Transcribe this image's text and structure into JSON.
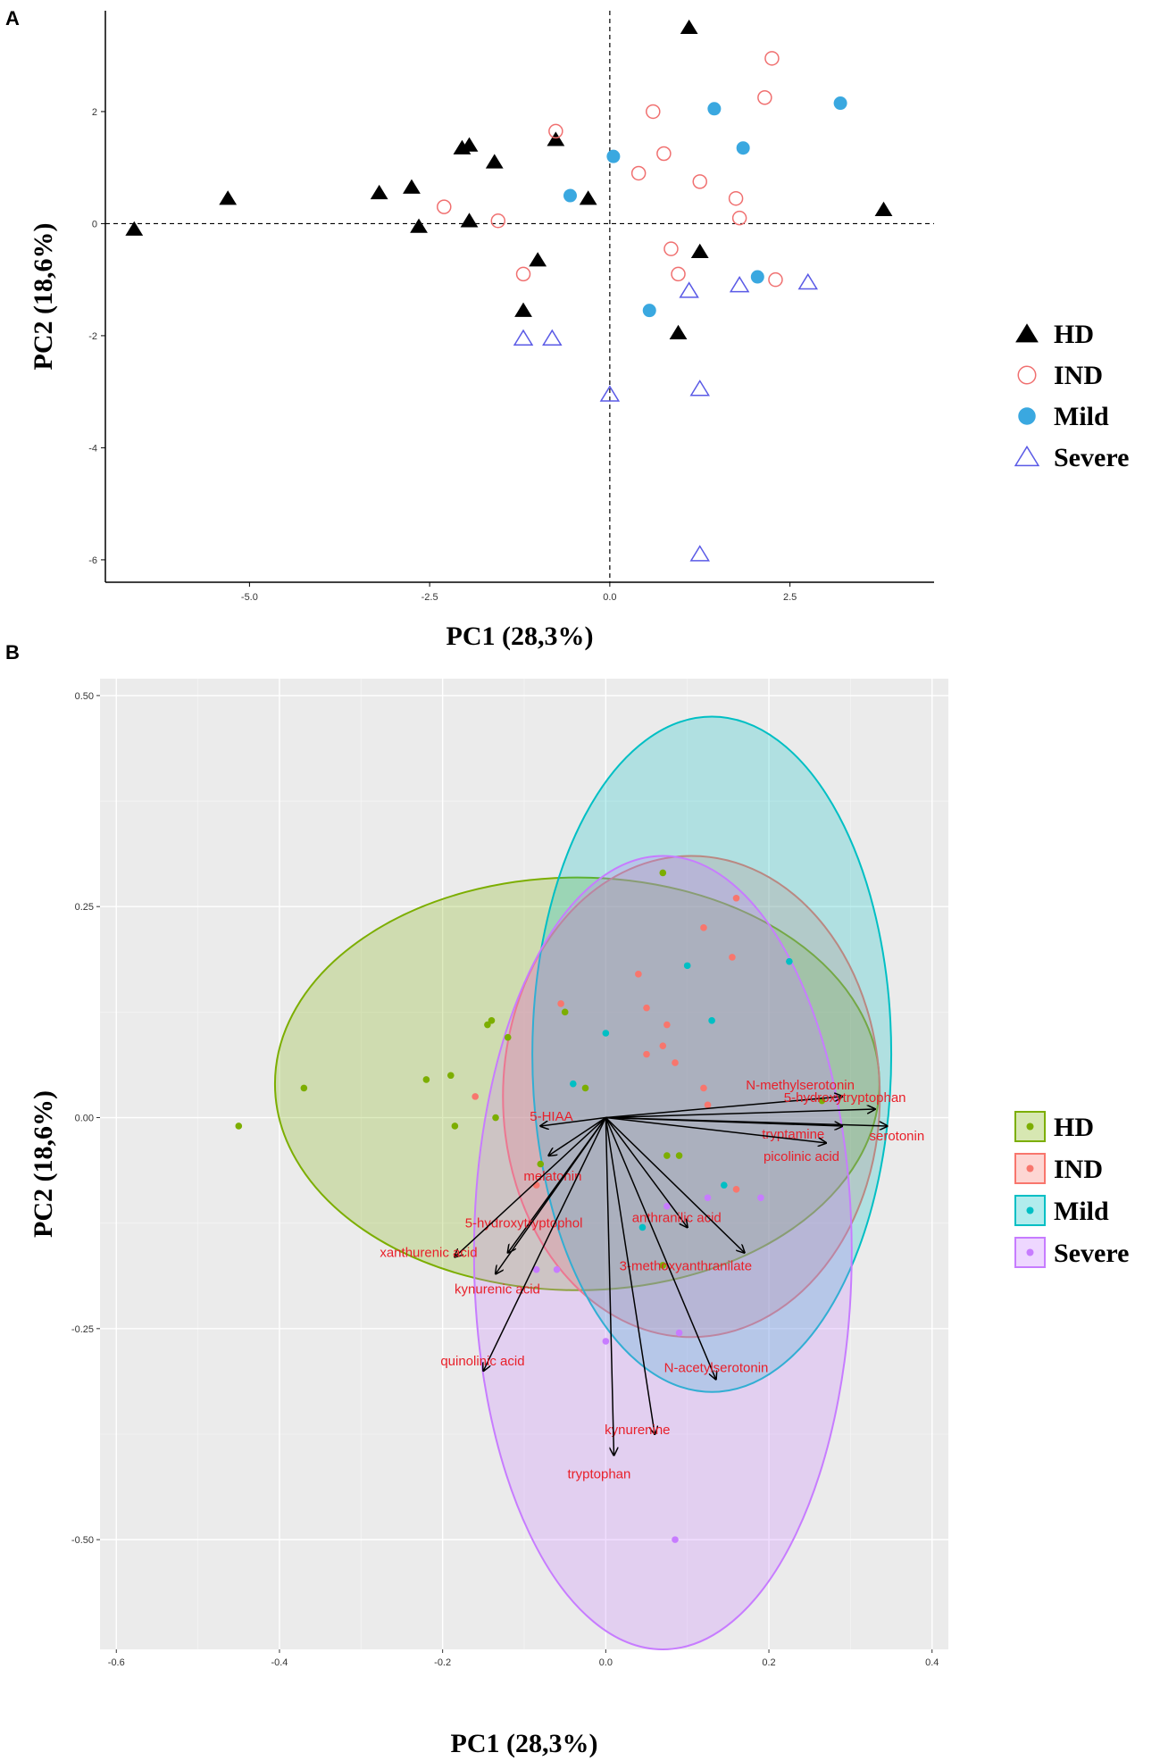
{
  "chart_data": [
    {
      "panel": "A",
      "type": "scatter",
      "xlabel": "PC1 (28,3%)",
      "ylabel": "PC2 (18,6%)",
      "xlim": [
        -7.0,
        4.5
      ],
      "ylim": [
        -6.4,
        3.8
      ],
      "xticks": [
        -5.0,
        -2.5,
        0.0,
        2.5
      ],
      "xtick_labels": [
        "-5.0",
        "-2.5",
        "0.0",
        "2.5"
      ],
      "yticks": [
        2,
        0,
        -2,
        -4,
        -6
      ],
      "ytick_labels": [
        "2",
        "0",
        "-2",
        "-4",
        "-6"
      ],
      "reference_lines": {
        "x": 0,
        "y": 0
      },
      "legend": [
        {
          "name": "HD",
          "marker": "filled-triangle",
          "color": "#000000"
        },
        {
          "name": "IND",
          "marker": "open-circle",
          "color": "#f07070"
        },
        {
          "name": "Mild",
          "marker": "filled-circle",
          "color": "#3aa8e0"
        },
        {
          "name": "Severe",
          "marker": "open-triangle",
          "color": "#5a5ae6"
        }
      ],
      "series": [
        {
          "name": "HD",
          "points": [
            [
              -6.6,
              -0.1
            ],
            [
              -5.3,
              0.45
            ],
            [
              -3.2,
              0.55
            ],
            [
              -2.75,
              0.65
            ],
            [
              -2.65,
              -0.05
            ],
            [
              -2.05,
              1.35
            ],
            [
              -1.95,
              1.4
            ],
            [
              -1.95,
              0.05
            ],
            [
              -1.6,
              1.1
            ],
            [
              -1.2,
              -1.55
            ],
            [
              -1.0,
              -0.65
            ],
            [
              -0.75,
              1.5
            ],
            [
              -0.3,
              0.45
            ],
            [
              0.95,
              -1.95
            ],
            [
              1.1,
              3.5
            ],
            [
              1.25,
              -0.5
            ],
            [
              3.8,
              0.25
            ]
          ]
        },
        {
          "name": "IND",
          "points": [
            [
              -2.3,
              0.3
            ],
            [
              -1.55,
              0.05
            ],
            [
              -1.2,
              -0.9
            ],
            [
              -0.75,
              1.65
            ],
            [
              0.4,
              0.9
            ],
            [
              0.6,
              2.0
            ],
            [
              0.75,
              1.25
            ],
            [
              0.85,
              -0.45
            ],
            [
              0.95,
              -0.9
            ],
            [
              1.25,
              0.75
            ],
            [
              1.75,
              0.45
            ],
            [
              1.8,
              0.1
            ],
            [
              2.15,
              2.25
            ],
            [
              2.25,
              2.95
            ],
            [
              2.3,
              -1.0
            ]
          ]
        },
        {
          "name": "Mild",
          "points": [
            [
              -0.55,
              0.5
            ],
            [
              0.05,
              1.2
            ],
            [
              0.55,
              -1.55
            ],
            [
              1.45,
              2.05
            ],
            [
              1.85,
              1.35
            ],
            [
              2.05,
              -0.95
            ],
            [
              3.2,
              2.15
            ]
          ]
        },
        {
          "name": "Severe",
          "points": [
            [
              -1.2,
              -2.05
            ],
            [
              -0.8,
              -2.05
            ],
            [
              0.0,
              -3.05
            ],
            [
              1.1,
              -1.2
            ],
            [
              1.25,
              -2.95
            ],
            [
              1.25,
              -5.9
            ],
            [
              1.8,
              -1.1
            ],
            [
              2.75,
              -1.05
            ]
          ]
        }
      ]
    },
    {
      "panel": "B",
      "type": "biplot",
      "xlabel": "PC1 (28,3%)",
      "ylabel": "PC2 (18,6%)",
      "xlim": [
        -0.62,
        0.42
      ],
      "ylim": [
        -0.63,
        0.52
      ],
      "xticks": [
        -0.6,
        -0.4,
        -0.2,
        0.0,
        0.2,
        0.4
      ],
      "xtick_labels": [
        "-0.6",
        "-0.4",
        "-0.2",
        "0.0",
        "0.2",
        "0.4"
      ],
      "yticks": [
        0.5,
        0.25,
        0.0,
        -0.25,
        -0.5
      ],
      "ytick_labels": [
        "0.50",
        "0.25",
        "0.00",
        "-0.25",
        "-0.50"
      ],
      "legend": [
        {
          "name": "HD",
          "color": "#7cae00"
        },
        {
          "name": "IND",
          "color": "#f8766d"
        },
        {
          "name": "Mild",
          "color": "#00bfc4"
        },
        {
          "name": "Severe",
          "color": "#c77cff"
        }
      ],
      "ellipses": [
        {
          "group": "HD",
          "cx": -0.035,
          "cy": 0.04,
          "rx": 0.3705,
          "ry": 0.2445,
          "color": "#7cae00"
        },
        {
          "group": "IND",
          "cx": 0.105,
          "cy": 0.025,
          "rx": 0.231,
          "ry": 0.285,
          "color": "#f8766d"
        },
        {
          "group": "Mild",
          "cx": 0.13,
          "cy": 0.075,
          "rx": 0.22,
          "ry": 0.4,
          "color": "#00bfc4"
        },
        {
          "group": "Severe",
          "cx": 0.07,
          "cy": -0.16,
          "rx": 0.2315,
          "ry": 0.47,
          "color": "#c77cff"
        }
      ],
      "series": [
        {
          "name": "HD",
          "points": [
            [
              -0.45,
              -0.01
            ],
            [
              -0.37,
              0.035
            ],
            [
              -0.22,
              0.045
            ],
            [
              -0.19,
              0.05
            ],
            [
              -0.185,
              -0.01
            ],
            [
              -0.145,
              0.11
            ],
            [
              -0.14,
              0.115
            ],
            [
              -0.135,
              0.0
            ],
            [
              -0.12,
              0.095
            ],
            [
              -0.08,
              -0.055
            ],
            [
              -0.05,
              0.125
            ],
            [
              -0.025,
              0.035
            ],
            [
              0.075,
              -0.045
            ],
            [
              0.07,
              0.29
            ],
            [
              0.09,
              -0.045
            ],
            [
              0.265,
              0.02
            ],
            [
              0.07,
              -0.175
            ]
          ]
        },
        {
          "name": "IND",
          "points": [
            [
              -0.16,
              0.025
            ],
            [
              -0.085,
              -0.08
            ],
            [
              -0.055,
              0.135
            ],
            [
              0.04,
              0.17
            ],
            [
              0.05,
              0.075
            ],
            [
              0.07,
              0.085
            ],
            [
              0.05,
              0.13
            ],
            [
              0.085,
              0.065
            ],
            [
              0.12,
              0.035
            ],
            [
              0.125,
              0.015
            ],
            [
              0.16,
              0.26
            ],
            [
              0.155,
              0.19
            ],
            [
              0.16,
              -0.085
            ],
            [
              0.075,
              0.11
            ],
            [
              0.12,
              0.225
            ]
          ]
        },
        {
          "name": "Mild",
          "points": [
            [
              -0.04,
              0.04
            ],
            [
              0.0,
              0.1
            ],
            [
              0.045,
              -0.13
            ],
            [
              0.1,
              0.18
            ],
            [
              0.13,
              0.115
            ],
            [
              0.145,
              -0.08
            ],
            [
              0.225,
              0.185
            ]
          ]
        },
        {
          "name": "Severe",
          "points": [
            [
              -0.085,
              -0.18
            ],
            [
              -0.06,
              -0.18
            ],
            [
              0.0,
              -0.265
            ],
            [
              0.075,
              -0.105
            ],
            [
              0.09,
              -0.255
            ],
            [
              0.085,
              -0.5
            ],
            [
              0.125,
              -0.095
            ],
            [
              0.19,
              -0.095
            ]
          ]
        }
      ],
      "loadings": [
        {
          "name": "N-methylserotonin",
          "x": 0.29,
          "y": 0.025
        },
        {
          "name": "5-hydroxytryptophan",
          "x": 0.33,
          "y": 0.01
        },
        {
          "name": "tryptamine",
          "x": 0.29,
          "y": -0.01
        },
        {
          "name": "serotonin",
          "x": 0.345,
          "y": -0.01
        },
        {
          "name": "picolinic acid",
          "x": 0.27,
          "y": -0.03
        },
        {
          "name": "5-HIAA",
          "x": -0.08,
          "y": -0.01
        },
        {
          "name": "melatonin",
          "x": -0.07,
          "y": -0.045
        },
        {
          "name": "anthranilic acid",
          "x": 0.1,
          "y": -0.13
        },
        {
          "name": "3-methoxyanthranilate",
          "x": 0.17,
          "y": -0.16
        },
        {
          "name": "5-hydroxytryptophol",
          "x": -0.12,
          "y": -0.16
        },
        {
          "name": "xanthurenic acid",
          "x": -0.185,
          "y": -0.165
        },
        {
          "name": "kynurenic acid",
          "x": -0.135,
          "y": -0.185
        },
        {
          "name": "quinolinic acid",
          "x": -0.15,
          "y": -0.3
        },
        {
          "name": "N-acetylserotonin",
          "x": 0.135,
          "y": -0.31
        },
        {
          "name": "kynurenine",
          "x": 0.06,
          "y": -0.375
        },
        {
          "name": "tryptophan",
          "x": 0.01,
          "y": -0.4
        }
      ]
    }
  ]
}
